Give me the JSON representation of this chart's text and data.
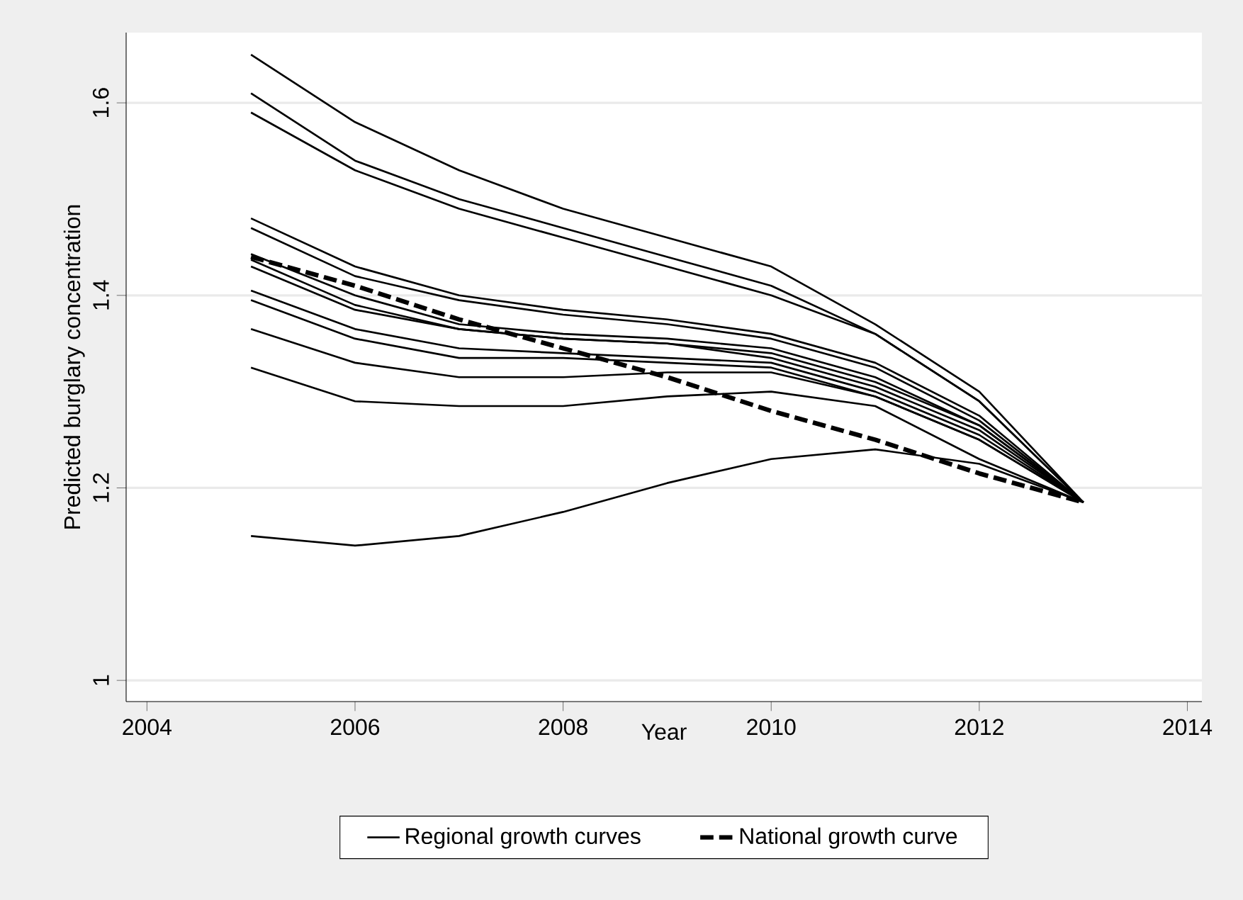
{
  "chart_data": {
    "type": "line",
    "xlabel": "Year",
    "ylabel": "Predicted burglary concentration",
    "x": [
      2005,
      2006,
      2007,
      2008,
      2009,
      2010,
      2011,
      2012,
      2013
    ],
    "series": [
      {
        "name": "Regional growth curves",
        "color": "#000000",
        "line_style": "solid",
        "values": [
          1.65,
          1.58,
          1.53,
          1.49,
          1.46,
          1.43,
          1.37,
          1.3,
          1.185
        ]
      },
      {
        "color": "#000000",
        "line_style": "solid",
        "values": [
          1.61,
          1.54,
          1.5,
          1.47,
          1.44,
          1.41,
          1.36,
          1.29,
          1.185
        ]
      },
      {
        "color": "#000000",
        "line_style": "solid",
        "values": [
          1.59,
          1.53,
          1.49,
          1.46,
          1.43,
          1.4,
          1.36,
          1.29,
          1.185
        ]
      },
      {
        "color": "#000000",
        "line_style": "solid",
        "values": [
          1.48,
          1.43,
          1.4,
          1.385,
          1.375,
          1.36,
          1.33,
          1.275,
          1.185
        ]
      },
      {
        "color": "#000000",
        "line_style": "solid",
        "values": [
          1.47,
          1.42,
          1.395,
          1.38,
          1.37,
          1.355,
          1.325,
          1.27,
          1.185
        ]
      },
      {
        "color": "#000000",
        "line_style": "solid",
        "values": [
          1.443,
          1.4,
          1.37,
          1.36,
          1.355,
          1.345,
          1.315,
          1.265,
          1.185
        ]
      },
      {
        "color": "#000000",
        "line_style": "solid",
        "values": [
          1.437,
          1.39,
          1.365,
          1.355,
          1.35,
          1.34,
          1.31,
          1.265,
          1.185
        ]
      },
      {
        "color": "#000000",
        "line_style": "solid",
        "values": [
          1.43,
          1.385,
          1.365,
          1.355,
          1.35,
          1.335,
          1.305,
          1.26,
          1.185
        ]
      },
      {
        "color": "#000000",
        "line_style": "solid",
        "values": [
          1.405,
          1.365,
          1.345,
          1.34,
          1.335,
          1.33,
          1.3,
          1.255,
          1.185
        ]
      },
      {
        "color": "#000000",
        "line_style": "solid",
        "values": [
          1.395,
          1.355,
          1.335,
          1.335,
          1.33,
          1.325,
          1.295,
          1.25,
          1.185
        ]
      },
      {
        "color": "#000000",
        "line_style": "solid",
        "values": [
          1.365,
          1.33,
          1.315,
          1.315,
          1.32,
          1.32,
          1.295,
          1.25,
          1.185
        ]
      },
      {
        "color": "#000000",
        "line_style": "solid",
        "values": [
          1.325,
          1.29,
          1.285,
          1.285,
          1.295,
          1.3,
          1.285,
          1.23,
          1.185
        ]
      },
      {
        "color": "#000000",
        "line_style": "solid",
        "values": [
          1.15,
          1.14,
          1.15,
          1.175,
          1.205,
          1.23,
          1.24,
          1.225,
          1.185
        ]
      },
      {
        "name": "National growth curve",
        "color": "#000000",
        "line_style": "dashed",
        "values": [
          1.44,
          1.41,
          1.375,
          1.345,
          1.315,
          1.28,
          1.25,
          1.215,
          1.185
        ]
      }
    ],
    "xlim": [
      2003.8,
      2014.14
    ],
    "ylim": [
      0.978,
      1.673
    ],
    "xticks": [
      2004,
      2006,
      2008,
      2010,
      2012,
      2014
    ],
    "yticks": [
      1,
      1.2,
      1.4,
      1.6
    ],
    "grid": "y",
    "legend": "bottom",
    "marker": "none"
  }
}
